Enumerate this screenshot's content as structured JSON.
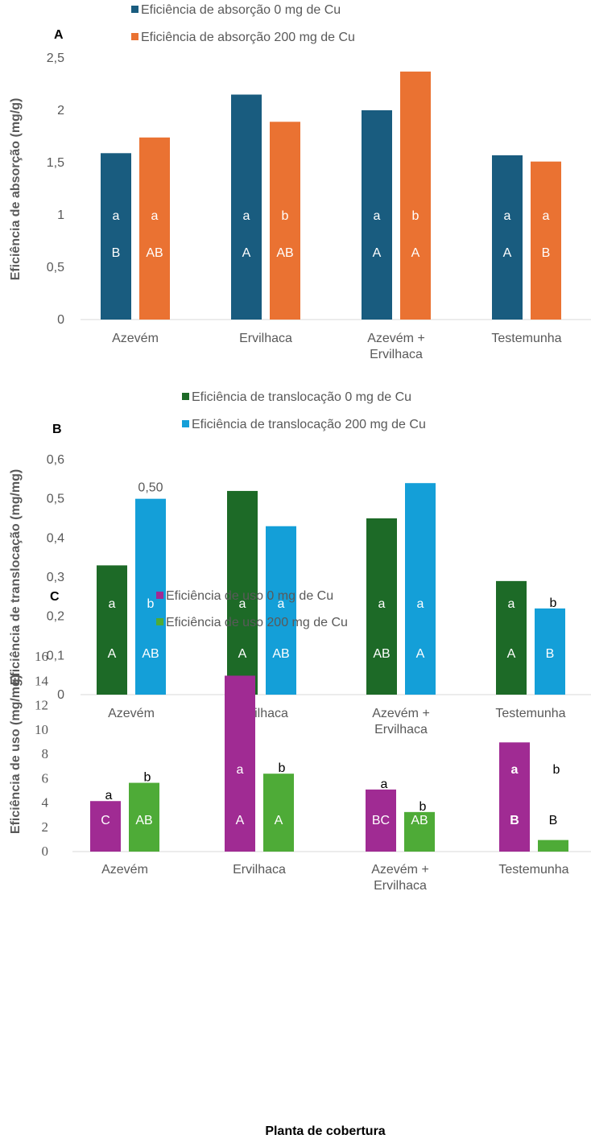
{
  "chart_data": [
    {
      "panel": "A",
      "type": "bar",
      "categories": [
        [
          "Azevém"
        ],
        [
          "Ervilhaca"
        ],
        [
          "Azevém +",
          "Ervilhaca"
        ],
        [
          "Testemunha"
        ]
      ],
      "ylabel": "Eficiência de absorção (mg/g)",
      "ylim": [
        0,
        2.5
      ],
      "yticks": [
        "0",
        "0,5",
        "1",
        "1,5",
        "2",
        "2,5"
      ],
      "tick_values": [
        0,
        0.5,
        1,
        1.5,
        2,
        2.5
      ],
      "series": [
        {
          "name": "Eficiência de absorção 0 mg de Cu",
          "color": "#195c7f",
          "values": [
            1.59,
            2.15,
            2.0,
            1.57
          ],
          "labels_lower": [
            "a",
            "a",
            "a",
            "a"
          ],
          "labels_upper": [
            "B",
            "A",
            "A",
            "A"
          ],
          "label_color": "#ffffff"
        },
        {
          "name": "Eficiência de absorção 200 mg de Cu",
          "color": "#ea7232",
          "values": [
            1.74,
            1.89,
            2.37,
            1.51
          ],
          "labels_lower": [
            "a",
            "b",
            "b",
            "a"
          ],
          "labels_upper": [
            "AB",
            "AB",
            "A",
            "B"
          ],
          "label_color": "#ffffff"
        }
      ],
      "annotations": []
    },
    {
      "panel": "B",
      "type": "bar",
      "categories": [
        [
          "Azevém"
        ],
        [
          "Ervilhaca"
        ],
        [
          "Azevém +",
          "Ervilhaca"
        ],
        [
          "Testemunha"
        ]
      ],
      "ylabel": "Eficiência de translocação (mg/mg)",
      "ylim": [
        0,
        0.6
      ],
      "yticks": [
        "0",
        "0,1",
        "0,2",
        "0,3",
        "0,4",
        "0,5",
        "0,6"
      ],
      "tick_values": [
        0,
        0.1,
        0.2,
        0.3,
        0.4,
        0.5,
        0.6
      ],
      "series": [
        {
          "name": "Eficiência de translocação 0 mg de Cu",
          "color": "#1d6a27",
          "values": [
            0.33,
            0.52,
            0.45,
            0.29
          ],
          "labels_lower": [
            "a",
            "a",
            "a",
            "a"
          ],
          "labels_upper": [
            "A",
            "A",
            "AB",
            "A"
          ],
          "label_color": "#ffffff"
        },
        {
          "name": "Eficiência de translocação 200 mg de Cu",
          "color": "#149fd8",
          "values": [
            0.5,
            0.43,
            0.54,
            0.22
          ],
          "labels_lower": [
            "b",
            "a",
            "a",
            "b"
          ],
          "labels_upper": [
            "AB",
            "AB",
            "A",
            "B"
          ],
          "label_color": "#ffffff"
        }
      ],
      "annotations": [
        {
          "series": 1,
          "category": 0,
          "text": "0,50"
        }
      ]
    },
    {
      "panel": "C",
      "type": "bar",
      "categories": [
        [
          "Azevém"
        ],
        [
          "Ervilhaca"
        ],
        [
          "Azevém +",
          "Ervilhaca"
        ],
        [
          "Testemunha"
        ]
      ],
      "ylabel": "Eficiência de uso (mg/mg)",
      "xlabel": "Planta de cobertura",
      "ylim": [
        0,
        16
      ],
      "yticks": [
        "0",
        "2",
        "4",
        "6",
        "8",
        "10",
        "12",
        "14",
        "16"
      ],
      "tick_values": [
        0,
        2,
        4,
        6,
        8,
        10,
        12,
        14,
        16
      ],
      "series": [
        {
          "name": "Eficiência de uso 0 mg de Cu",
          "color": "#a02b93",
          "values": [
            4.15,
            14.45,
            5.1,
            8.97
          ],
          "labels_lower": [
            "a",
            "a",
            "a",
            "a"
          ],
          "labels_upper": [
            "C",
            "A",
            "BC",
            "B"
          ],
          "label_color": "#ffffff"
        },
        {
          "name": "Eficiência de uso 200 mg de Cu",
          "color": "#4eab37",
          "values": [
            5.65,
            6.4,
            3.25,
            0.95
          ],
          "labels_lower": [
            "b",
            "b",
            "b",
            "b"
          ],
          "labels_upper": [
            "AB",
            "A",
            "AB",
            "B"
          ],
          "label_color": "#ffffff"
        }
      ],
      "annotations": []
    }
  ]
}
